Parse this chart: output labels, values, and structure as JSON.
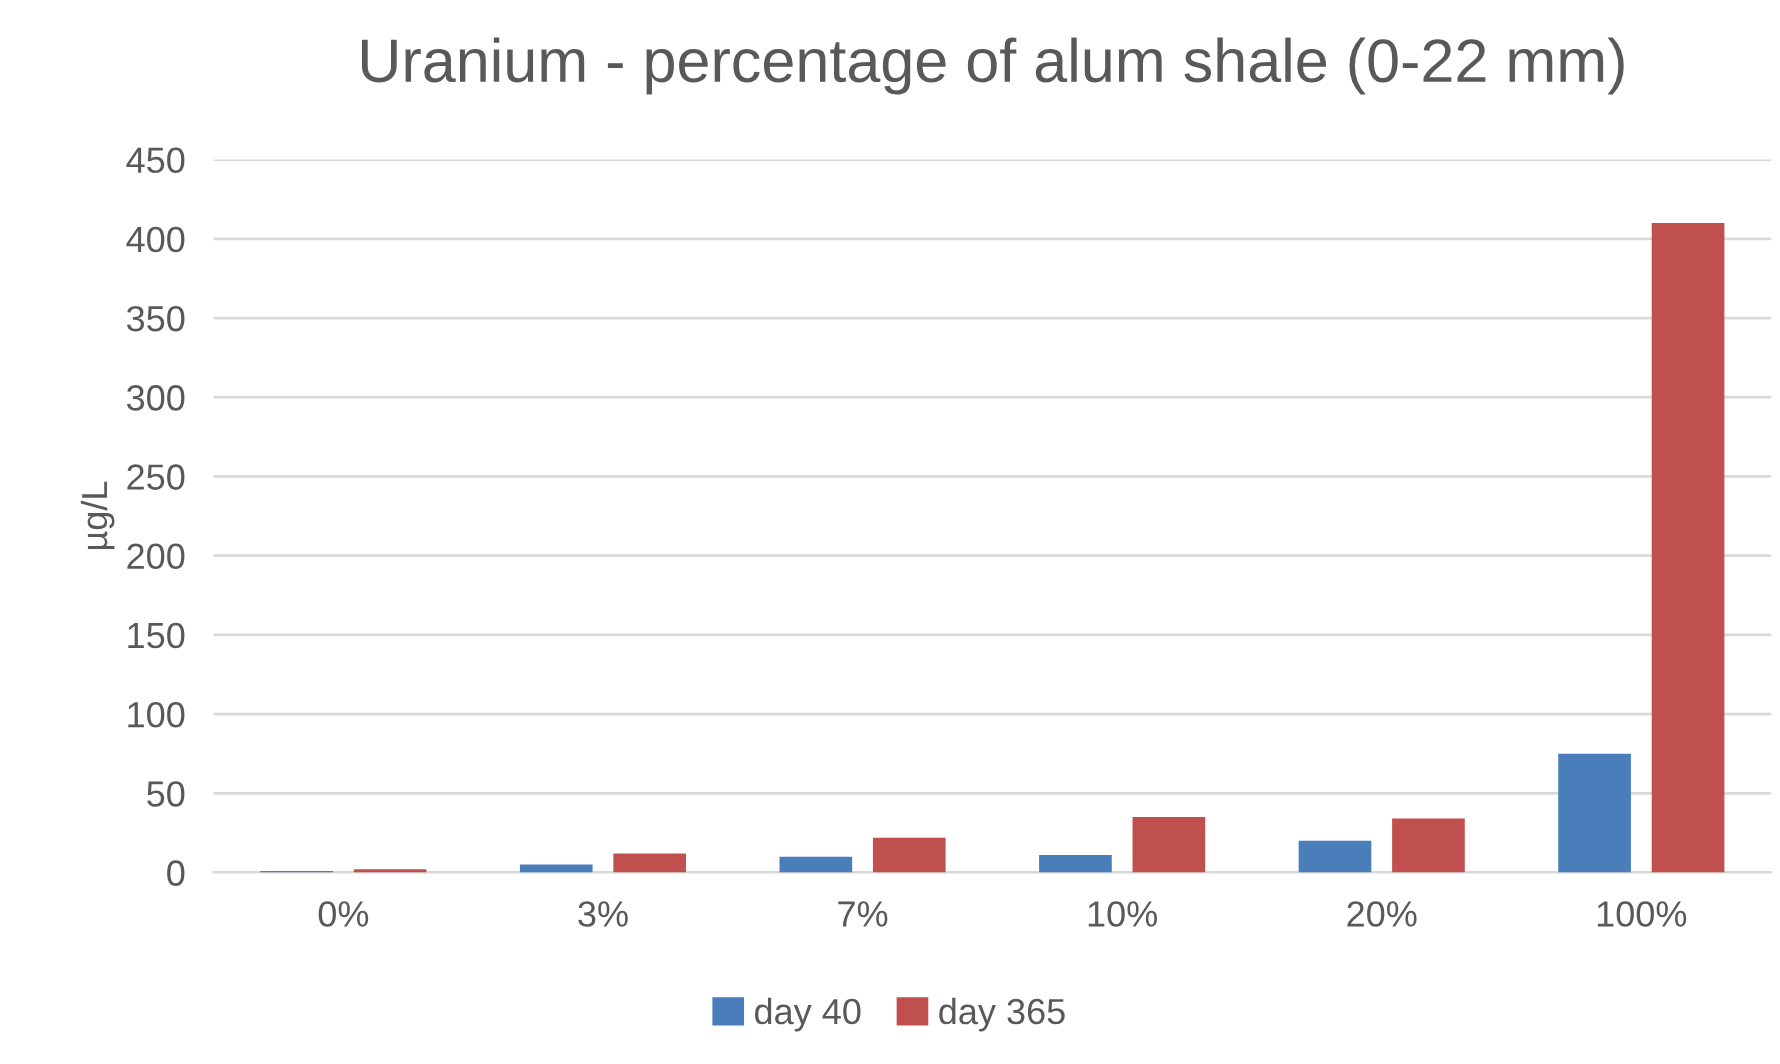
{
  "chart_data": {
    "type": "bar",
    "title": "Uranium - percentage of alum shale (0-22 mm)",
    "ylabel": "µg/L",
    "categories": [
      "0%",
      "3%",
      "7%",
      "10%",
      "20%",
      "100%"
    ],
    "series": [
      {
        "name": "day 40",
        "color": "#4a7ebb",
        "values": [
          1,
          5,
          10,
          11,
          20,
          75
        ]
      },
      {
        "name": "day 365",
        "color": "#c0504d",
        "values": [
          2,
          12,
          22,
          35,
          34,
          410
        ]
      }
    ],
    "ylim": [
      0,
      450
    ],
    "yticks": [
      0,
      50,
      100,
      150,
      200,
      250,
      300,
      350,
      400,
      450
    ],
    "grid": "y",
    "legend": "bottom"
  }
}
